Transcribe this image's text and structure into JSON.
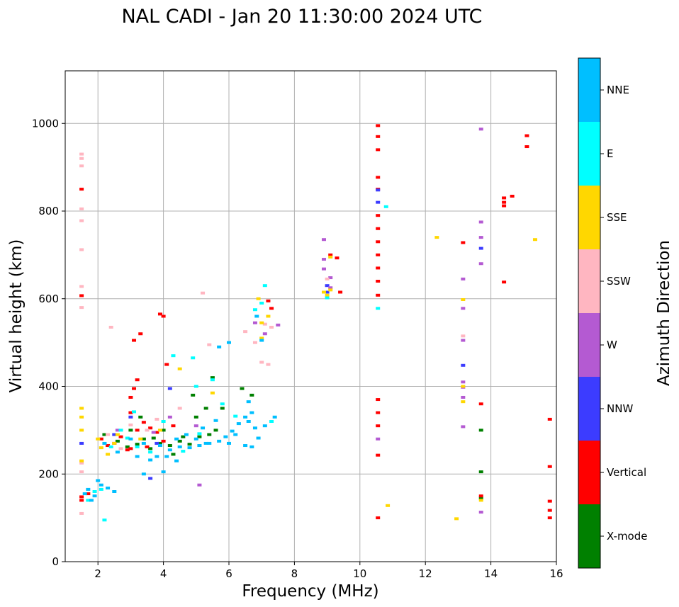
{
  "chart_data": {
    "type": "scatter",
    "title": "NAL CADI - Jan 20 11:30:00 2024 UTC",
    "xlabel": "Frequency (MHz)",
    "ylabel": "Virtual height (km)",
    "xlim": [
      1,
      16
    ],
    "ylim": [
      0,
      1120
    ],
    "xticks": [
      2,
      4,
      6,
      8,
      10,
      12,
      14,
      16
    ],
    "yticks": [
      0,
      200,
      400,
      600,
      800,
      1000
    ],
    "grid": true,
    "colorbar": {
      "label": "Azimuth Direction",
      "categories": [
        {
          "name": "X-mode",
          "color": "#008000"
        },
        {
          "name": "Vertical",
          "color": "#ff0000"
        },
        {
          "name": "NNW",
          "color": "#3c3cff"
        },
        {
          "name": "W",
          "color": "#b45ad2"
        },
        {
          "name": "SSW",
          "color": "#ffb6c1"
        },
        {
          "name": "SSE",
          "color": "#ffd700"
        },
        {
          "name": "E",
          "color": "#00ffff"
        },
        {
          "name": "NNE",
          "color": "#00bfff"
        }
      ]
    },
    "series": [
      {
        "name": "X-mode",
        "points": [
          [
            2.9,
            262
          ],
          [
            3.2,
            268
          ],
          [
            3.6,
            258
          ],
          [
            3.9,
            270
          ],
          [
            4.2,
            265
          ],
          [
            4.5,
            275
          ],
          [
            4.8,
            268
          ],
          [
            5.1,
            285
          ],
          [
            5.4,
            290
          ],
          [
            5.6,
            300
          ],
          [
            3.4,
            280
          ],
          [
            4.0,
            300
          ],
          [
            4.6,
            285
          ],
          [
            3.0,
            300
          ],
          [
            2.6,
            275
          ],
          [
            5.0,
            330
          ],
          [
            5.8,
            350
          ],
          [
            6.4,
            395
          ],
          [
            6.7,
            380
          ],
          [
            4.3,
            245
          ],
          [
            3.7,
            282
          ],
          [
            5.3,
            350
          ],
          [
            13.7,
            300
          ],
          [
            13.7,
            205
          ],
          [
            13.7,
            145
          ],
          [
            2.2,
            290
          ],
          [
            3.3,
            330
          ],
          [
            4.9,
            380
          ],
          [
            5.5,
            420
          ]
        ]
      },
      {
        "name": "Vertical",
        "points": [
          [
            1.5,
            850
          ],
          [
            1.5,
            607
          ],
          [
            1.5,
            148
          ],
          [
            1.5,
            140
          ],
          [
            1.7,
            155
          ],
          [
            2.5,
            270
          ],
          [
            2.7,
            285
          ],
          [
            3.0,
            258
          ],
          [
            3.2,
            300
          ],
          [
            3.4,
            318
          ],
          [
            3.6,
            305
          ],
          [
            3.8,
            295
          ],
          [
            4.0,
            275
          ],
          [
            4.3,
            310
          ],
          [
            3.3,
            520
          ],
          [
            3.9,
            565
          ],
          [
            3.1,
            505
          ],
          [
            3.0,
            340
          ],
          [
            3.0,
            375
          ],
          [
            3.1,
            395
          ],
          [
            3.2,
            415
          ],
          [
            4.0,
            560
          ],
          [
            4.1,
            450
          ],
          [
            3.5,
            262
          ],
          [
            2.9,
            255
          ],
          [
            2.3,
            265
          ],
          [
            2.1,
            280
          ],
          [
            7.3,
            578
          ],
          [
            7.2,
            595
          ],
          [
            9.1,
            700
          ],
          [
            9.4,
            615
          ],
          [
            9.3,
            693
          ],
          [
            10.55,
            995
          ],
          [
            10.55,
            970
          ],
          [
            10.55,
            940
          ],
          [
            10.55,
            877
          ],
          [
            10.55,
            850
          ],
          [
            10.55,
            790
          ],
          [
            10.55,
            760
          ],
          [
            10.55,
            730
          ],
          [
            10.55,
            700
          ],
          [
            10.55,
            670
          ],
          [
            10.55,
            640
          ],
          [
            10.55,
            608
          ],
          [
            10.55,
            370
          ],
          [
            10.55,
            340
          ],
          [
            10.55,
            310
          ],
          [
            10.55,
            243
          ],
          [
            10.55,
            100
          ],
          [
            13.15,
            728
          ],
          [
            13.7,
            360
          ],
          [
            13.7,
            150
          ],
          [
            14.4,
            830
          ],
          [
            14.4,
            820
          ],
          [
            14.4,
            812
          ],
          [
            14.4,
            638
          ],
          [
            14.65,
            834
          ],
          [
            15.1,
            972
          ],
          [
            15.1,
            947
          ],
          [
            15.8,
            325
          ],
          [
            15.8,
            217
          ],
          [
            15.8,
            138
          ],
          [
            15.8,
            117
          ],
          [
            15.8,
            100
          ]
        ]
      },
      {
        "name": "NNW",
        "points": [
          [
            1.5,
            270
          ],
          [
            3.6,
            190
          ],
          [
            3.8,
            270
          ],
          [
            4.2,
            395
          ],
          [
            10.55,
            820
          ],
          [
            10.55,
            848
          ],
          [
            13.15,
            448
          ],
          [
            13.7,
            715
          ],
          [
            9.0,
            630
          ],
          [
            9.0,
            615
          ],
          [
            3.0,
            330
          ],
          [
            2.5,
            290
          ]
        ]
      },
      {
        "name": "W",
        "points": [
          [
            5.1,
            175
          ],
          [
            8.9,
            735
          ],
          [
            8.9,
            690
          ],
          [
            8.9,
            668
          ],
          [
            9.1,
            648
          ],
          [
            9.1,
            625
          ],
          [
            10.55,
            280
          ],
          [
            13.15,
            645
          ],
          [
            13.15,
            578
          ],
          [
            13.15,
            505
          ],
          [
            13.15,
            410
          ],
          [
            13.15,
            398
          ],
          [
            13.15,
            375
          ],
          [
            13.15,
            308
          ],
          [
            13.7,
            987
          ],
          [
            13.7,
            775
          ],
          [
            13.7,
            740
          ],
          [
            13.7,
            680
          ],
          [
            13.7,
            113
          ],
          [
            7.1,
            520
          ],
          [
            6.8,
            545
          ],
          [
            5.0,
            310
          ],
          [
            4.2,
            330
          ],
          [
            2.6,
            300
          ],
          [
            3.7,
            295
          ],
          [
            7.5,
            540
          ]
        ]
      },
      {
        "name": "SSW",
        "points": [
          [
            1.5,
            930
          ],
          [
            1.5,
            920
          ],
          [
            1.5,
            903
          ],
          [
            1.5,
            805
          ],
          [
            1.5,
            778
          ],
          [
            1.5,
            712
          ],
          [
            1.5,
            628
          ],
          [
            1.5,
            580
          ],
          [
            1.5,
            225
          ],
          [
            1.5,
            205
          ],
          [
            1.5,
            110
          ],
          [
            2.4,
            535
          ],
          [
            2.3,
            290
          ],
          [
            3.0,
            312
          ],
          [
            2.7,
            258
          ],
          [
            5.2,
            613
          ],
          [
            5.4,
            495
          ],
          [
            6.5,
            525
          ],
          [
            6.8,
            500
          ],
          [
            7.0,
            455
          ],
          [
            7.2,
            450
          ],
          [
            7.1,
            542
          ],
          [
            7.3,
            535
          ],
          [
            9.0,
            645
          ],
          [
            13.15,
            515
          ],
          [
            3.5,
            300
          ],
          [
            3.8,
            325
          ],
          [
            4.5,
            350
          ]
        ]
      },
      {
        "name": "SSE",
        "points": [
          [
            1.5,
            350
          ],
          [
            1.5,
            330
          ],
          [
            1.5,
            300
          ],
          [
            1.5,
            230
          ],
          [
            2.0,
            280
          ],
          [
            2.1,
            260
          ],
          [
            2.3,
            245
          ],
          [
            2.6,
            290
          ],
          [
            4.5,
            440
          ],
          [
            5.5,
            385
          ],
          [
            6.9,
            600
          ],
          [
            7.0,
            545
          ],
          [
            7.2,
            560
          ],
          [
            7.0,
            510
          ],
          [
            8.9,
            615
          ],
          [
            9.0,
            608
          ],
          [
            9.1,
            620
          ],
          [
            9.1,
            695
          ],
          [
            10.85,
            128
          ],
          [
            12.35,
            740
          ],
          [
            12.95,
            98
          ],
          [
            13.15,
            598
          ],
          [
            13.15,
            365
          ],
          [
            13.15,
            400
          ],
          [
            13.7,
            140
          ],
          [
            15.35,
            735
          ],
          [
            3.9,
            300
          ],
          [
            3.3,
            280
          ],
          [
            2.5,
            270
          ]
        ]
      },
      {
        "name": "E",
        "points": [
          [
            2.2,
            95
          ],
          [
            1.7,
            140
          ],
          [
            1.9,
            160
          ],
          [
            2.1,
            165
          ],
          [
            4.3,
            470
          ],
          [
            4.9,
            465
          ],
          [
            5.5,
            415
          ],
          [
            5.0,
            400
          ],
          [
            5.8,
            360
          ],
          [
            7.1,
            630
          ],
          [
            7.0,
            590
          ],
          [
            6.8,
            575
          ],
          [
            9.0,
            602
          ],
          [
            10.8,
            810
          ],
          [
            10.55,
            578
          ],
          [
            3.2,
            262
          ],
          [
            3.6,
            250
          ],
          [
            2.9,
            282
          ],
          [
            2.7,
            300
          ],
          [
            2.4,
            262
          ],
          [
            4.6,
            252
          ],
          [
            5.1,
            292
          ],
          [
            4.0,
            320
          ],
          [
            3.1,
            342
          ],
          [
            6.2,
            332
          ],
          [
            7.3,
            320
          ]
        ]
      },
      {
        "name": "NNE",
        "points": [
          [
            1.7,
            165
          ],
          [
            1.9,
            150
          ],
          [
            2.1,
            175
          ],
          [
            2.3,
            168
          ],
          [
            2.5,
            160
          ],
          [
            1.8,
            140
          ],
          [
            2.0,
            185
          ],
          [
            3.2,
            240
          ],
          [
            3.6,
            232
          ],
          [
            3.8,
            240
          ],
          [
            4.2,
            255
          ],
          [
            4.5,
            262
          ],
          [
            4.8,
            260
          ],
          [
            5.1,
            265
          ],
          [
            5.4,
            270
          ],
          [
            5.7,
            275
          ],
          [
            5.9,
            285
          ],
          [
            6.1,
            298
          ],
          [
            6.3,
            315
          ],
          [
            6.5,
            330
          ],
          [
            6.6,
            320
          ],
          [
            6.7,
            340
          ],
          [
            6.8,
            305
          ],
          [
            6.5,
            265
          ],
          [
            6.7,
            262
          ],
          [
            6.9,
            282
          ],
          [
            7.1,
            310
          ],
          [
            7.4,
            330
          ],
          [
            3.0,
            280
          ],
          [
            3.4,
            270
          ],
          [
            3.9,
            265
          ],
          [
            4.4,
            280
          ],
          [
            4.7,
            290
          ],
          [
            5.2,
            305
          ],
          [
            5.6,
            322
          ],
          [
            6.0,
            500
          ],
          [
            5.7,
            490
          ],
          [
            4.4,
            230
          ],
          [
            2.6,
            250
          ],
          [
            2.2,
            270
          ],
          [
            1.6,
            155
          ],
          [
            3.4,
            200
          ],
          [
            4.0,
            205
          ],
          [
            5.0,
            280
          ],
          [
            6.0,
            270
          ],
          [
            6.2,
            290
          ],
          [
            6.6,
            365
          ],
          [
            7.0,
            505
          ],
          [
            6.85,
            560
          ],
          [
            5.3,
            270
          ],
          [
            4.1,
            240
          ]
        ]
      }
    ]
  }
}
